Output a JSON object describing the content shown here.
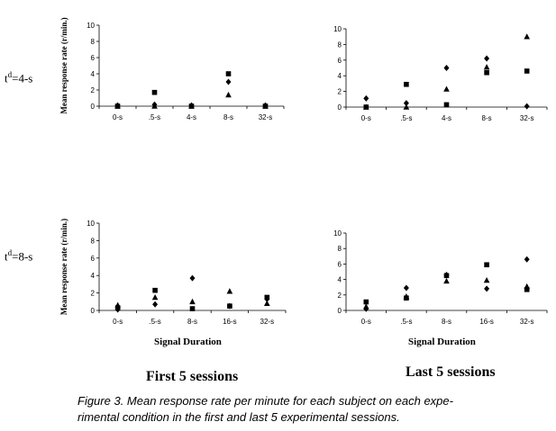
{
  "row_labels": [
    {
      "t": "t",
      "sup": "d",
      "rest": "=4-s"
    },
    {
      "t": "t",
      "sup": "d",
      "rest": "=8-s"
    }
  ],
  "column_labels": [
    "First 5 sessions",
    "Last 5 sessions"
  ],
  "caption": "Figure 3. Mean response rate per minute for each subject on each experimental condition in the first and last 5 experimental sessions.",
  "caption_line1": "Figure 3. Mean response rate per minute for each subject on each expe-",
  "caption_line2": "rimental condition in the first and last 5 experimental sessions.",
  "chart_data": [
    {
      "type": "scatter",
      "panel": "td=4-s, First 5 sessions",
      "ylabel": "Mean response rate (r/min.)",
      "xlabel": "",
      "categories": [
        "0-s",
        ".5-s",
        "4-s",
        "8-s",
        "32-s"
      ],
      "ylim": [
        0,
        10
      ],
      "yticks": [
        0,
        2,
        4,
        6,
        8,
        10
      ],
      "series": [
        {
          "name": "square",
          "marker": "square",
          "values": [
            0.0,
            1.7,
            0.0,
            4.0,
            0.0
          ]
        },
        {
          "name": "diamond",
          "marker": "diamond",
          "values": [
            0.1,
            0.2,
            0.1,
            3.0,
            0.1
          ]
        },
        {
          "name": "triangle",
          "marker": "triangle",
          "values": [
            0.0,
            0.0,
            0.0,
            1.4,
            0.0
          ]
        }
      ]
    },
    {
      "type": "scatter",
      "panel": "td=4-s, Last 5 sessions",
      "ylabel": "",
      "xlabel": "",
      "categories": [
        "0-s",
        ".5-s",
        "4-s",
        "8-s",
        "32-s"
      ],
      "ylim": [
        0,
        10
      ],
      "yticks": [
        0,
        2,
        4,
        6,
        8,
        10
      ],
      "series": [
        {
          "name": "square",
          "marker": "square",
          "values": [
            0.0,
            2.9,
            0.3,
            4.4,
            4.6
          ]
        },
        {
          "name": "diamond",
          "marker": "diamond",
          "values": [
            1.1,
            0.5,
            5.0,
            6.2,
            0.1
          ]
        },
        {
          "name": "triangle",
          "marker": "triangle",
          "values": [
            0.0,
            0.0,
            2.3,
            5.1,
            9.0
          ]
        }
      ]
    },
    {
      "type": "scatter",
      "panel": "td=8-s, First 5 sessions",
      "ylabel": "Mean response rate (r/min.)",
      "xlabel": "Signal Duration",
      "categories": [
        "0-s",
        ".5-s",
        "8-s",
        "16-s",
        "32-s"
      ],
      "ylim": [
        0,
        10
      ],
      "yticks": [
        0,
        2,
        4,
        6,
        8,
        10
      ],
      "series": [
        {
          "name": "square",
          "marker": "square",
          "values": [
            0.3,
            2.3,
            0.2,
            0.5,
            1.5
          ]
        },
        {
          "name": "diamond",
          "marker": "diamond",
          "values": [
            0.1,
            0.7,
            3.7,
            0.5,
            1.3
          ]
        },
        {
          "name": "triangle",
          "marker": "triangle",
          "values": [
            0.6,
            1.5,
            1.0,
            2.2,
            0.8
          ]
        }
      ]
    },
    {
      "type": "scatter",
      "panel": "td=8-s, Last 5 sessions",
      "ylabel": "",
      "xlabel": "Signal Duration",
      "categories": [
        "0-s",
        ".5-s",
        "8-s",
        "16-s",
        "32-s"
      ],
      "ylim": [
        0,
        10
      ],
      "yticks": [
        0,
        2,
        4,
        6,
        8,
        10
      ],
      "series": [
        {
          "name": "square",
          "marker": "square",
          "values": [
            1.1,
            1.6,
            4.5,
            5.9,
            2.7
          ]
        },
        {
          "name": "diamond",
          "marker": "diamond",
          "values": [
            0.2,
            2.9,
            4.6,
            2.8,
            6.6
          ]
        },
        {
          "name": "triangle",
          "marker": "triangle",
          "values": [
            0.5,
            1.8,
            3.8,
            3.9,
            3.1
          ]
        }
      ]
    }
  ]
}
